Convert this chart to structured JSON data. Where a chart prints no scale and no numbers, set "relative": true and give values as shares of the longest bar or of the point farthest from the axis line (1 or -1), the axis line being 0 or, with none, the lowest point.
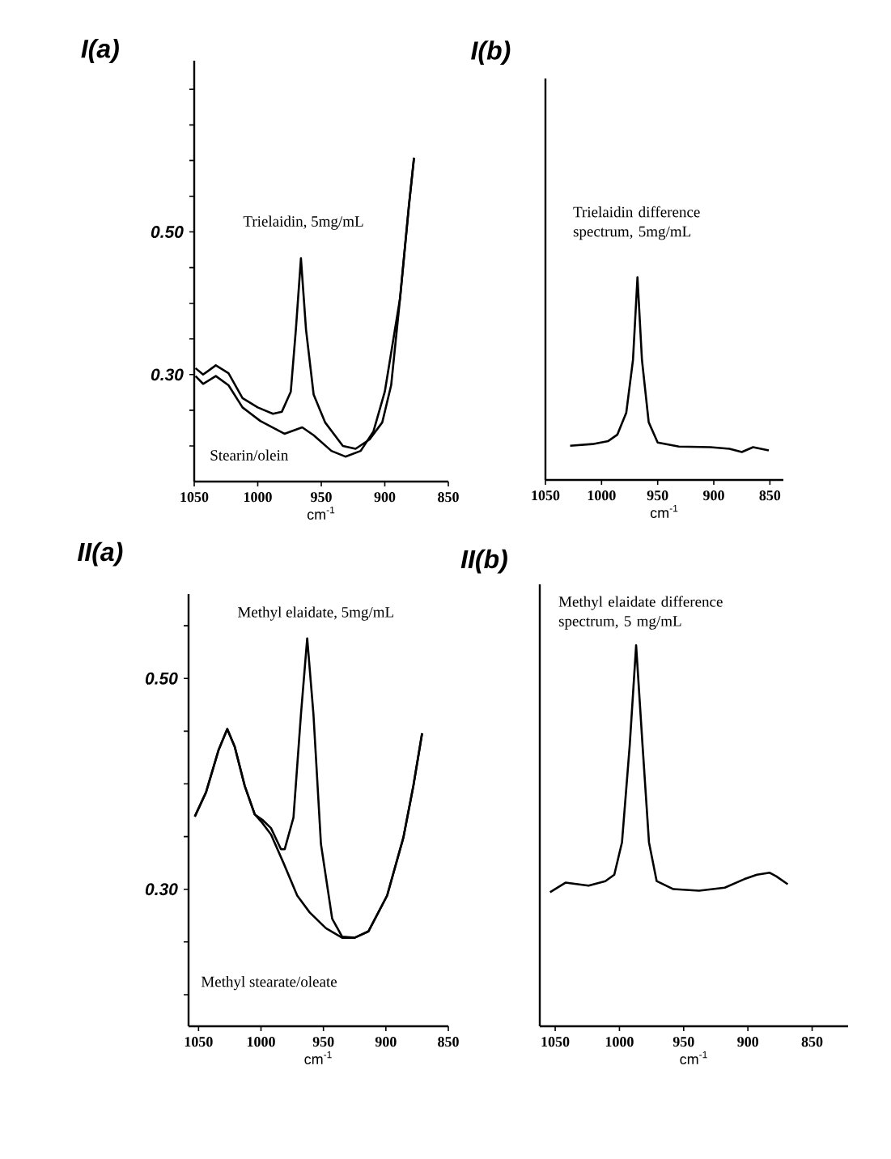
{
  "chart_data": [
    {
      "type": "line",
      "title": "I(a)",
      "xlabel": "cm$^{-1}$",
      "xlim": [
        1050,
        850
      ],
      "xticks": [
        1050,
        1000,
        950,
        900,
        850
      ],
      "ylim": [
        0.15,
        0.74
      ],
      "yticks": [
        {
          "value": 0.2,
          "label": null
        },
        {
          "value": 0.25,
          "label": null
        },
        {
          "value": 0.3,
          "label": "0.30"
        },
        {
          "value": 0.35,
          "label": null
        },
        {
          "value": 0.4,
          "label": null
        },
        {
          "value": 0.45,
          "label": null
        },
        {
          "value": 0.5,
          "label": "0.50"
        },
        {
          "value": 0.55,
          "label": null
        },
        {
          "value": 0.6,
          "label": null
        },
        {
          "value": 0.65,
          "label": null
        },
        {
          "value": 0.7,
          "label": null
        }
      ],
      "series": [
        {
          "name": "Trielaidin, 5mg/mL",
          "color": "#000000",
          "x": [
            1049,
            1043,
            1033,
            1023,
            1012,
            1000,
            988,
            981,
            974,
            970,
            966,
            962,
            956,
            947,
            933,
            923,
            912,
            902,
            895,
            888,
            881,
            877
          ],
          "values": [
            0.309,
            0.3,
            0.313,
            0.302,
            0.267,
            0.254,
            0.245,
            0.248,
            0.276,
            0.363,
            0.463,
            0.363,
            0.272,
            0.233,
            0.2,
            0.196,
            0.209,
            0.233,
            0.285,
            0.407,
            0.537,
            0.604
          ]
        },
        {
          "name": "Stearin/olein",
          "color": "#000000",
          "x": [
            1049,
            1043,
            1033,
            1023,
            1012,
            998,
            979,
            965,
            956,
            942,
            931,
            919,
            909,
            900,
            888,
            881,
            877
          ],
          "values": [
            0.298,
            0.287,
            0.298,
            0.285,
            0.254,
            0.235,
            0.217,
            0.226,
            0.215,
            0.193,
            0.185,
            0.193,
            0.22,
            0.276,
            0.407,
            0.537,
            0.604
          ]
        }
      ]
    },
    {
      "type": "line",
      "title": "I(b)",
      "xlabel": "cm$^{-1}$",
      "xlim": [
        1050,
        838
      ],
      "xticks": [
        1050,
        1000,
        950,
        900,
        850
      ],
      "relative": true,
      "tick_labels": "x",
      "series": [
        {
          "name": "Trielaidin difference spectrum, 5mg/mL",
          "color": "#000000",
          "x": [
            1028,
            1008,
            994,
            986,
            978,
            972,
            968,
            964,
            958,
            950,
            931,
            903,
            886,
            875,
            865,
            858,
            851
          ],
          "values": [
            0.169,
            0.177,
            0.192,
            0.223,
            0.331,
            0.592,
            1.0,
            0.592,
            0.285,
            0.185,
            0.165,
            0.162,
            0.154,
            0.138,
            0.162,
            0.154,
            0.146
          ]
        }
      ]
    },
    {
      "type": "line",
      "title": "II(a)",
      "xlabel": "cm$^{-1}$",
      "xlim": [
        1058,
        850
      ],
      "xticks": [
        1050,
        1000,
        950,
        900,
        850
      ],
      "ylim": [
        0.17,
        0.58
      ],
      "yticks": [
        {
          "value": 0.2,
          "label": null
        },
        {
          "value": 0.25,
          "label": null
        },
        {
          "value": 0.3,
          "label": "0.30"
        },
        {
          "value": 0.35,
          "label": null
        },
        {
          "value": 0.4,
          "label": null
        },
        {
          "value": 0.45,
          "label": null
        },
        {
          "value": 0.5,
          "label": "0.50"
        },
        {
          "value": 0.55,
          "label": null
        }
      ],
      "series": [
        {
          "name": "Methyl elaidate, 5mg/mL",
          "color": "#000000",
          "x": [
            1053,
            1044,
            1034,
            1027,
            1021,
            1013,
            1005,
            999,
            992,
            984,
            981,
            974,
            968,
            963,
            958,
            952,
            943,
            935,
            925,
            914,
            899,
            886,
            878,
            871
          ],
          "values": [
            0.369,
            0.392,
            0.432,
            0.452,
            0.435,
            0.398,
            0.371,
            0.366,
            0.358,
            0.338,
            0.338,
            0.368,
            0.466,
            0.538,
            0.466,
            0.343,
            0.272,
            0.255,
            0.254,
            0.26,
            0.294,
            0.349,
            0.398,
            0.448
          ]
        },
        {
          "name": "Methyl stearate/oleate",
          "color": "#000000",
          "x": [
            1053,
            1044,
            1034,
            1027,
            1021,
            1013,
            1005,
            999,
            992,
            982,
            971,
            961,
            948,
            935,
            925,
            914,
            899,
            886,
            878,
            871
          ],
          "values": [
            0.369,
            0.392,
            0.432,
            0.452,
            0.435,
            0.398,
            0.371,
            0.363,
            0.352,
            0.325,
            0.294,
            0.278,
            0.263,
            0.254,
            0.254,
            0.26,
            0.294,
            0.349,
            0.398,
            0.448
          ]
        }
      ]
    },
    {
      "type": "line",
      "title": "II(b)",
      "xlabel": "cm$^{-1}$",
      "xlim": [
        1062,
        822
      ],
      "xticks": [
        1050,
        1000,
        950,
        900,
        850
      ],
      "relative": true,
      "tick_labels": "x",
      "series": [
        {
          "name": "Methyl elaidate difference spectrum, 5 mg/mL",
          "color": "#000000",
          "x": [
            1054,
            1042,
            1024,
            1011,
            1004,
            998,
            992,
            987,
            982,
            977,
            971,
            958,
            938,
            918,
            903,
            893,
            883,
            878,
            869
          ],
          "values": [
            0.352,
            0.377,
            0.369,
            0.381,
            0.398,
            0.483,
            0.737,
            1.0,
            0.737,
            0.483,
            0.381,
            0.36,
            0.356,
            0.364,
            0.386,
            0.398,
            0.403,
            0.394,
            0.373
          ]
        }
      ]
    }
  ]
}
